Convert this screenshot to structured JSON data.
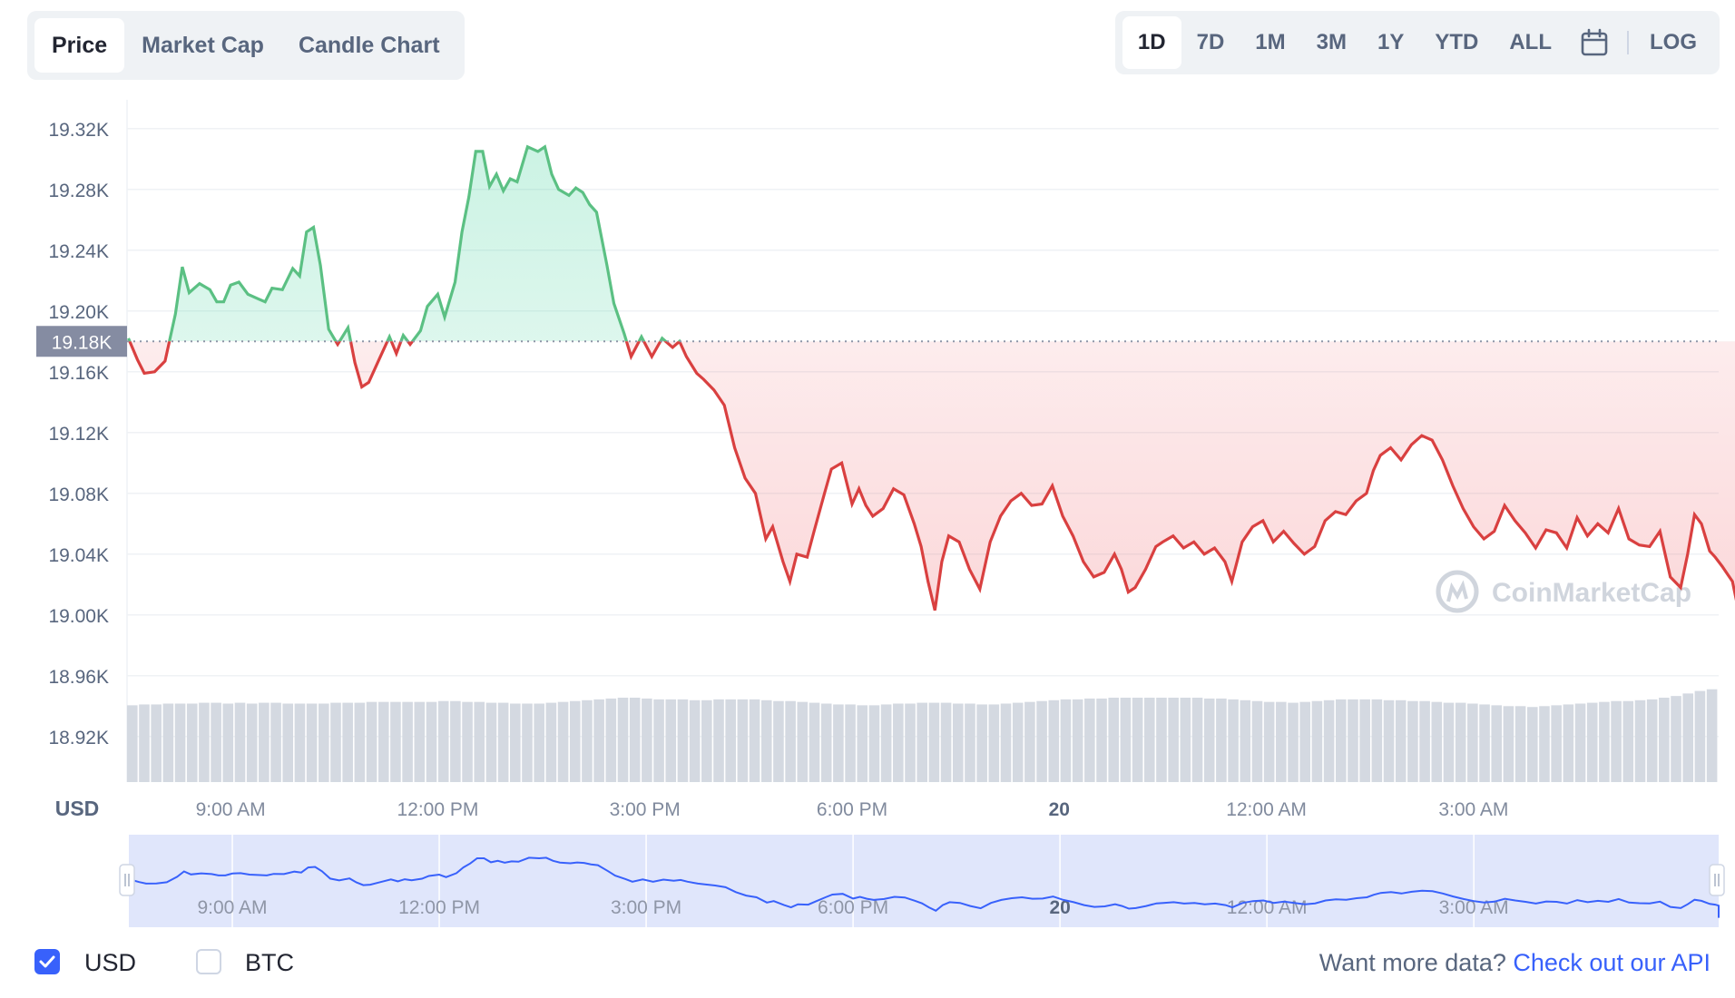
{
  "tabs": [
    {
      "label": "Price",
      "active": true
    },
    {
      "label": "Market Cap",
      "active": false
    },
    {
      "label": "Candle Chart",
      "active": false
    }
  ],
  "ranges": [
    {
      "label": "1D",
      "active": true
    },
    {
      "label": "7D",
      "active": false
    },
    {
      "label": "1M",
      "active": false
    },
    {
      "label": "3M",
      "active": false
    },
    {
      "label": "1Y",
      "active": false
    },
    {
      "label": "YTD",
      "active": false
    },
    {
      "label": "ALL",
      "active": false
    }
  ],
  "calendar_icon": "calendar-icon",
  "log_label": "LOG",
  "footer": {
    "usd_label": "USD",
    "usd_checked": true,
    "btc_label": "BTC",
    "btc_checked": false,
    "api_prefix": "Want more data?",
    "api_link": "Check out our API"
  },
  "colors": {
    "up": "#16c784",
    "up_line": "#5bc083",
    "down": "#d94040",
    "accent": "#3861fb",
    "navigator_line": "#3861fb"
  },
  "chart_data": {
    "type": "line",
    "watermark": "CoinMarketCap",
    "currency_label": "USD",
    "reference_price": 19180,
    "reference_label": "19.18K",
    "ylim": [
      18890,
      19330
    ],
    "y_ticks": [
      19320,
      19280,
      19240,
      19200,
      19160,
      19120,
      19080,
      19040,
      19000,
      18960,
      18920
    ],
    "y_tick_labels": [
      "19.32K",
      "19.28K",
      "19.24K",
      "19.20K",
      "19.16K",
      "19.12K",
      "19.08K",
      "19.04K",
      "19.00K",
      "18.96K",
      "18.92K"
    ],
    "x_range_hours": [
      7.5,
      30.55
    ],
    "x_ticks": [
      {
        "hour": 9,
        "label": "9:00 AM",
        "bold": false
      },
      {
        "hour": 12,
        "label": "12:00 PM",
        "bold": false
      },
      {
        "hour": 15,
        "label": "3:00 PM",
        "bold": false
      },
      {
        "hour": 18,
        "label": "6:00 PM",
        "bold": false
      },
      {
        "hour": 21,
        "label": "20",
        "bold": true
      },
      {
        "hour": 24,
        "label": "12:00 AM",
        "bold": false
      },
      {
        "hour": 27,
        "label": "3:00 AM",
        "bold": false
      }
    ],
    "series": [
      {
        "values": [
          [
            7.52,
            19182
          ],
          [
            7.65,
            19168
          ],
          [
            7.75,
            19159
          ],
          [
            7.9,
            19160
          ],
          [
            8.05,
            19167
          ],
          [
            8.2,
            19198
          ],
          [
            8.3,
            19229
          ],
          [
            8.4,
            19212
          ],
          [
            8.55,
            19218
          ],
          [
            8.7,
            19214
          ],
          [
            8.8,
            19206
          ],
          [
            8.9,
            19206
          ],
          [
            9.0,
            19217
          ],
          [
            9.12,
            19219
          ],
          [
            9.25,
            19211
          ],
          [
            9.4,
            19208
          ],
          [
            9.5,
            19206
          ],
          [
            9.6,
            19215
          ],
          [
            9.75,
            19214
          ],
          [
            9.9,
            19228
          ],
          [
            10.0,
            19223
          ],
          [
            10.1,
            19252
          ],
          [
            10.2,
            19255
          ],
          [
            10.3,
            19230
          ],
          [
            10.42,
            19188
          ],
          [
            10.55,
            19178
          ],
          [
            10.7,
            19189
          ],
          [
            10.8,
            19166
          ],
          [
            10.9,
            19150
          ],
          [
            11.0,
            19153
          ],
          [
            11.15,
            19168
          ],
          [
            11.3,
            19183
          ],
          [
            11.4,
            19172
          ],
          [
            11.5,
            19184
          ],
          [
            11.6,
            19178
          ],
          [
            11.75,
            19187
          ],
          [
            11.85,
            19203
          ],
          [
            12.0,
            19211
          ],
          [
            12.1,
            19196
          ],
          [
            12.25,
            19219
          ],
          [
            12.35,
            19252
          ],
          [
            12.45,
            19275
          ],
          [
            12.55,
            19305
          ],
          [
            12.65,
            19305
          ],
          [
            12.75,
            19282
          ],
          [
            12.85,
            19290
          ],
          [
            12.95,
            19279
          ],
          [
            13.05,
            19287
          ],
          [
            13.15,
            19285
          ],
          [
            13.3,
            19308
          ],
          [
            13.45,
            19305
          ],
          [
            13.55,
            19308
          ],
          [
            13.65,
            19290
          ],
          [
            13.75,
            19280
          ],
          [
            13.9,
            19276
          ],
          [
            14.0,
            19281
          ],
          [
            14.1,
            19278
          ],
          [
            14.2,
            19270
          ],
          [
            14.3,
            19265
          ],
          [
            14.45,
            19230
          ],
          [
            14.55,
            19205
          ],
          [
            14.7,
            19185
          ],
          [
            14.8,
            19170
          ],
          [
            14.95,
            19183
          ],
          [
            15.1,
            19170
          ],
          [
            15.25,
            19182
          ],
          [
            15.4,
            19176
          ],
          [
            15.5,
            19180
          ],
          [
            15.6,
            19170
          ],
          [
            15.75,
            19159
          ],
          [
            15.85,
            19155
          ],
          [
            16.0,
            19148
          ],
          [
            16.15,
            19138
          ],
          [
            16.3,
            19110
          ],
          [
            16.45,
            19090
          ],
          [
            16.6,
            19080
          ],
          [
            16.75,
            19050
          ],
          [
            16.85,
            19058
          ],
          [
            17.0,
            19035
          ],
          [
            17.1,
            19022
          ],
          [
            17.2,
            19040
          ],
          [
            17.35,
            19038
          ],
          [
            17.45,
            19055
          ],
          [
            17.6,
            19080
          ],
          [
            17.7,
            19096
          ],
          [
            17.85,
            19100
          ],
          [
            18.0,
            19073
          ],
          [
            18.1,
            19083
          ],
          [
            18.2,
            19072
          ],
          [
            18.3,
            19065
          ],
          [
            18.45,
            19070
          ],
          [
            18.6,
            19083
          ],
          [
            18.75,
            19079
          ],
          [
            18.9,
            19060
          ],
          [
            19.0,
            19045
          ],
          [
            19.1,
            19022
          ],
          [
            19.2,
            19003
          ],
          [
            19.3,
            19035
          ],
          [
            19.4,
            19052
          ],
          [
            19.55,
            19048
          ],
          [
            19.7,
            19030
          ],
          [
            19.85,
            19017
          ],
          [
            20.0,
            19048
          ],
          [
            20.15,
            19065
          ],
          [
            20.3,
            19075
          ],
          [
            20.45,
            19080
          ],
          [
            20.6,
            19072
          ],
          [
            20.75,
            19073
          ],
          [
            20.9,
            19085
          ],
          [
            21.05,
            19065
          ],
          [
            21.2,
            19052
          ],
          [
            21.35,
            19035
          ],
          [
            21.5,
            19025
          ],
          [
            21.65,
            19028
          ],
          [
            21.8,
            19040
          ],
          [
            21.9,
            19030
          ],
          [
            22.0,
            19015
          ],
          [
            22.1,
            19018
          ],
          [
            22.25,
            19030
          ],
          [
            22.4,
            19045
          ],
          [
            22.5,
            19048
          ],
          [
            22.65,
            19052
          ],
          [
            22.8,
            19044
          ],
          [
            22.95,
            19048
          ],
          [
            23.1,
            19040
          ],
          [
            23.25,
            19044
          ],
          [
            23.4,
            19035
          ],
          [
            23.5,
            19022
          ],
          [
            23.65,
            19048
          ],
          [
            23.8,
            19058
          ],
          [
            23.95,
            19062
          ],
          [
            24.1,
            19048
          ],
          [
            24.25,
            19055
          ],
          [
            24.4,
            19047
          ],
          [
            24.55,
            19040
          ],
          [
            24.7,
            19045
          ],
          [
            24.85,
            19062
          ],
          [
            25.0,
            19068
          ],
          [
            25.15,
            19066
          ],
          [
            25.3,
            19075
          ],
          [
            25.45,
            19080
          ],
          [
            25.55,
            19095
          ],
          [
            25.65,
            19105
          ],
          [
            25.8,
            19110
          ],
          [
            25.95,
            19102
          ],
          [
            26.1,
            19112
          ],
          [
            26.25,
            19118
          ],
          [
            26.4,
            19115
          ],
          [
            26.55,
            19102
          ],
          [
            26.7,
            19085
          ],
          [
            26.85,
            19070
          ],
          [
            27.0,
            19058
          ],
          [
            27.15,
            19050
          ],
          [
            27.3,
            19055
          ],
          [
            27.45,
            19072
          ],
          [
            27.6,
            19062
          ],
          [
            27.75,
            19054
          ],
          [
            27.9,
            19044
          ],
          [
            28.05,
            19056
          ],
          [
            28.2,
            19054
          ],
          [
            28.35,
            19044
          ],
          [
            28.5,
            19064
          ],
          [
            28.65,
            19052
          ],
          [
            28.8,
            19060
          ],
          [
            28.95,
            19054
          ],
          [
            29.1,
            19070
          ],
          [
            29.25,
            19050
          ],
          [
            29.4,
            19046
          ],
          [
            29.55,
            19045
          ],
          [
            29.7,
            19055
          ],
          [
            29.85,
            19025
          ],
          [
            30.0,
            19018
          ],
          [
            30.1,
            19040
          ],
          [
            30.2,
            19066
          ],
          [
            30.3,
            19060
          ],
          [
            30.42,
            19042
          ],
          [
            30.5,
            19038
          ],
          [
            30.6,
            19032
          ],
          [
            30.75,
            19022
          ],
          [
            30.85,
            19000
          ],
          [
            30.95,
            18983
          ],
          [
            31.0,
            18990
          ],
          [
            31.1,
            18998
          ],
          [
            31.2,
            18978
          ],
          [
            31.25,
            18962
          ],
          [
            31.32,
            18980
          ],
          [
            31.38,
            19008
          ],
          [
            31.45,
            18975
          ],
          [
            31.52,
            19012
          ],
          [
            31.6,
            19018
          ]
        ]
      }
    ],
    "volume_bars_relative": [
      0.91,
      0.92,
      0.92,
      0.93,
      0.93,
      0.93,
      0.94,
      0.94,
      0.93,
      0.94,
      0.93,
      0.94,
      0.94,
      0.93,
      0.93,
      0.93,
      0.93,
      0.94,
      0.94,
      0.94,
      0.95,
      0.95,
      0.95,
      0.95,
      0.95,
      0.95,
      0.96,
      0.96,
      0.95,
      0.95,
      0.94,
      0.94,
      0.93,
      0.93,
      0.93,
      0.94,
      0.95,
      0.96,
      0.97,
      0.98,
      0.99,
      1.0,
      1.0,
      0.99,
      0.98,
      0.98,
      0.98,
      0.97,
      0.97,
      0.98,
      0.98,
      0.98,
      0.98,
      0.97,
      0.96,
      0.96,
      0.95,
      0.94,
      0.93,
      0.92,
      0.92,
      0.91,
      0.91,
      0.92,
      0.93,
      0.93,
      0.94,
      0.94,
      0.94,
      0.93,
      0.93,
      0.92,
      0.92,
      0.93,
      0.94,
      0.95,
      0.96,
      0.97,
      0.98,
      0.98,
      0.99,
      0.99,
      1.0,
      1.0,
      1.0,
      1.0,
      1.0,
      1.0,
      1.0,
      1.0,
      0.99,
      0.99,
      0.98,
      0.97,
      0.96,
      0.95,
      0.95,
      0.94,
      0.95,
      0.96,
      0.97,
      0.98,
      0.98,
      0.98,
      0.98,
      0.97,
      0.97,
      0.96,
      0.96,
      0.95,
      0.94,
      0.94,
      0.93,
      0.92,
      0.91,
      0.9,
      0.9,
      0.89,
      0.9,
      0.91,
      0.92,
      0.93,
      0.94,
      0.95,
      0.96,
      0.96,
      0.97,
      0.98,
      1.0,
      1.02,
      1.05,
      1.08,
      1.1
    ]
  }
}
